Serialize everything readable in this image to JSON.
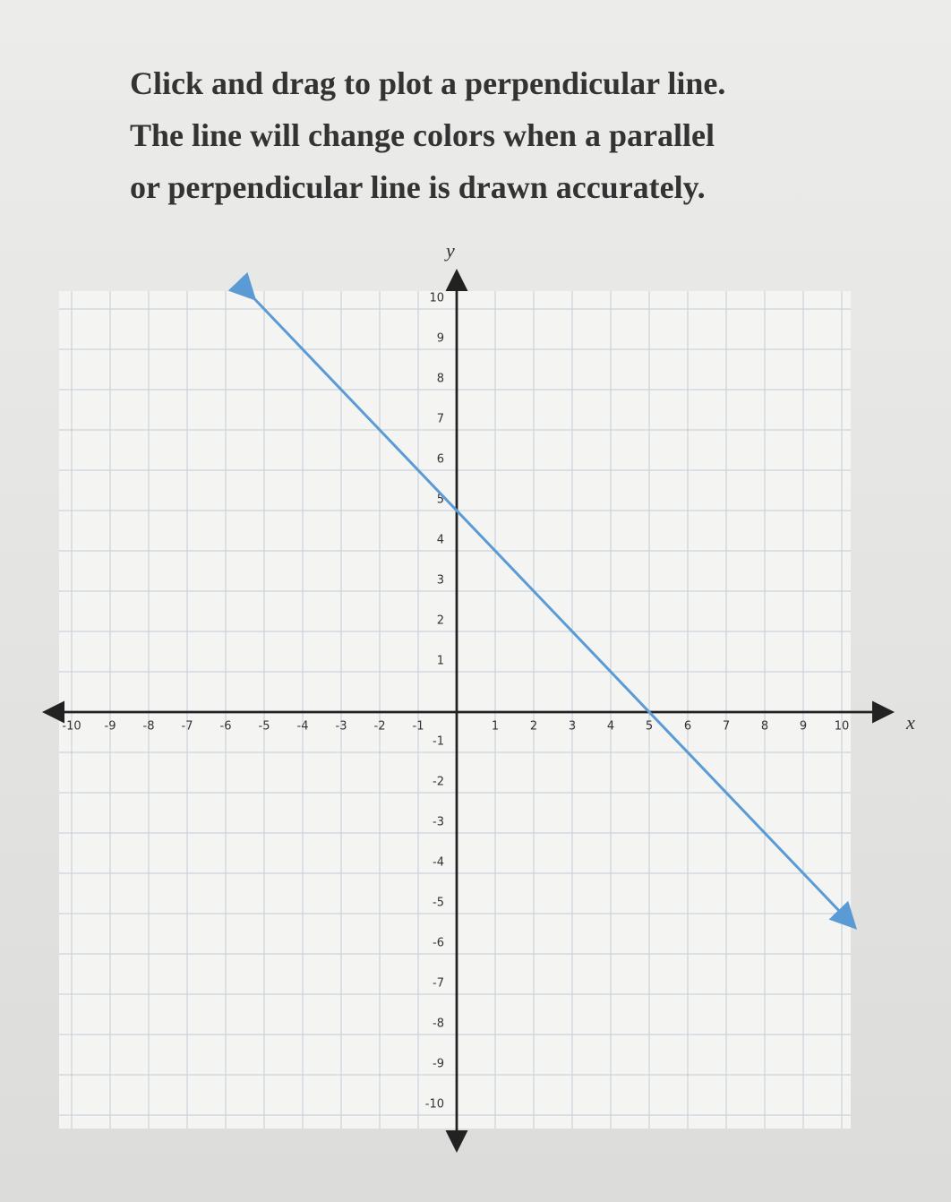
{
  "instructions": [
    "Click and drag to plot a perpendicular line.",
    "The line will change colors when a parallel",
    "or perpendicular line is drawn accurately."
  ],
  "chart_data": {
    "type": "line",
    "x_label": "x",
    "y_label": "y",
    "xlim": [
      -10,
      10
    ],
    "ylim": [
      -10,
      10
    ],
    "xticks": [
      -10,
      -9,
      -8,
      -7,
      -6,
      -5,
      -4,
      -3,
      -2,
      -1,
      1,
      2,
      3,
      4,
      5,
      6,
      7,
      8,
      9,
      10
    ],
    "yticks": [
      -10,
      -9,
      -8,
      -7,
      -6,
      -5,
      -4,
      -3,
      -2,
      -1,
      1,
      2,
      3,
      4,
      5,
      6,
      7,
      8,
      9,
      10
    ],
    "grid": true,
    "series": [
      {
        "color": "#5b9bd5",
        "x": [
          -5.3,
          10.3
        ],
        "values": [
          10.3,
          -5.3
        ]
      }
    ]
  }
}
